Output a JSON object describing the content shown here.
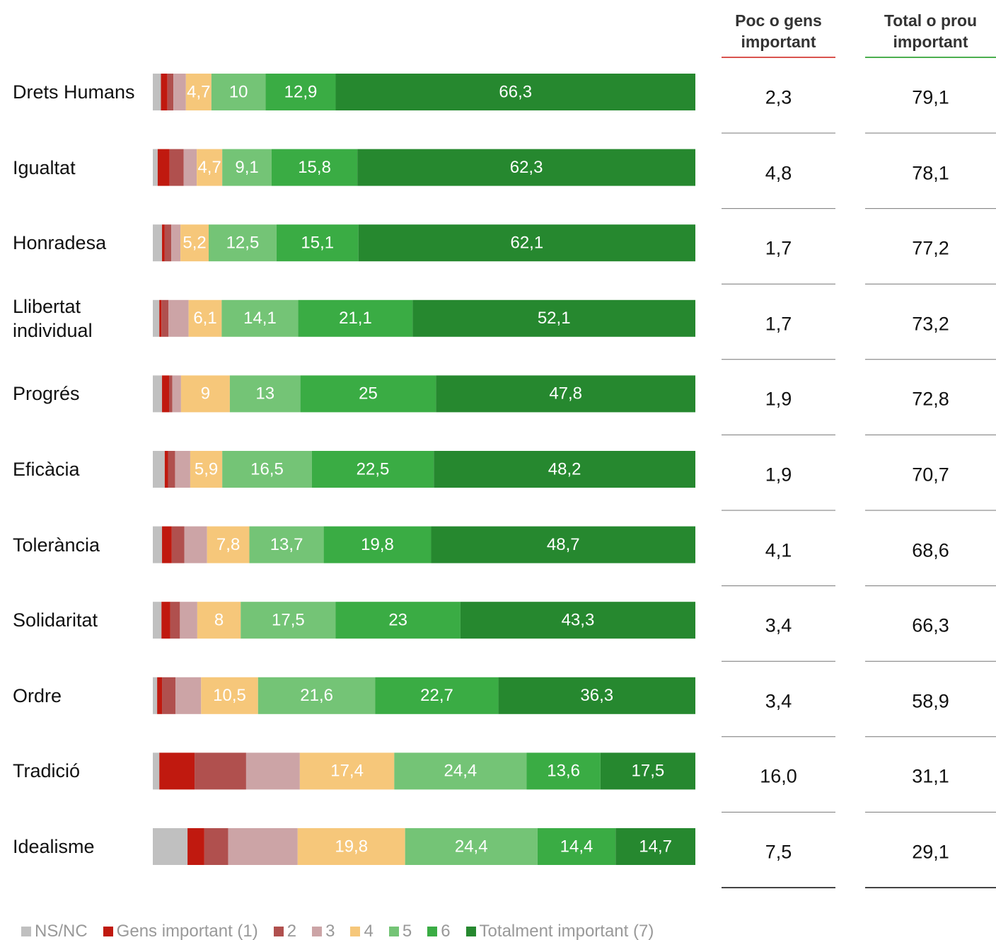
{
  "chart_data": {
    "type": "stacked-bar-horizontal",
    "categories": [
      "Drets Humans",
      "Igualtat",
      "Honradesa",
      "Llibertat individual",
      "Progrés",
      "Eficàcia",
      "Tolerància",
      "Solidaritat",
      "Ordre",
      "Tradició",
      "Idealisme"
    ],
    "xlim": [
      0,
      100
    ],
    "legend": "bottom",
    "series": [
      {
        "name": "NS/NC",
        "color": "#c0c0c0",
        "values": [
          1.5,
          0.9,
          1.7,
          1.2,
          1.7,
          2.2,
          1.7,
          1.6,
          0.8,
          1.2,
          6.4
        ]
      },
      {
        "name": "Gens important (1)",
        "color": "#c0190f",
        "values": [
          1.2,
          2.2,
          0.5,
          0.4,
          1.3,
          0.6,
          1.8,
          1.6,
          0.9,
          6.5,
          3.1
        ]
      },
      {
        "name": "2",
        "color": "#b0504e",
        "values": [
          1.1,
          2.6,
          1.2,
          1.3,
          0.6,
          1.3,
          2.3,
          1.8,
          2.5,
          9.5,
          4.4
        ]
      },
      {
        "name": "3",
        "color": "#cca4a6",
        "values": [
          2.3,
          2.4,
          1.7,
          3.7,
          1.6,
          2.8,
          4.2,
          3.2,
          4.7,
          9.9,
          12.8
        ]
      },
      {
        "name": "4",
        "color": "#f6c77a",
        "values": [
          4.7,
          4.7,
          5.2,
          6.1,
          9,
          5.9,
          7.8,
          8,
          10.5,
          17.4,
          19.8
        ],
        "value_labels": [
          "4,7",
          "4,7",
          "5,2",
          "6,1",
          "9",
          "5,9",
          "7,8",
          "8",
          "10,5",
          "17,4",
          "19,8"
        ]
      },
      {
        "name": "5",
        "color": "#74c476",
        "values": [
          10,
          9.1,
          12.5,
          14.1,
          13,
          16.5,
          13.7,
          17.5,
          21.6,
          24.4,
          24.4
        ],
        "value_labels": [
          "10",
          "9,1",
          "12,5",
          "14,1",
          "13",
          "16,5",
          "13,7",
          "17,5",
          "21,6",
          "24,4",
          "24,4"
        ]
      },
      {
        "name": "6",
        "color": "#3aac44",
        "values": [
          12.9,
          15.8,
          15.1,
          21.1,
          25,
          22.5,
          19.8,
          23,
          22.7,
          13.6,
          14.4
        ],
        "value_labels": [
          "12,9",
          "15,8",
          "15,1",
          "21,1",
          "25",
          "22,5",
          "19,8",
          "23",
          "22,7",
          "13,6",
          "14,4"
        ]
      },
      {
        "name": "Totalment important (7)",
        "color": "#26882f",
        "values": [
          66.3,
          62.3,
          62.1,
          52.1,
          47.8,
          48.2,
          48.7,
          43.3,
          36.3,
          17.5,
          14.7
        ],
        "value_labels": [
          "66,3",
          "62,3",
          "62,1",
          "52,1",
          "47,8",
          "48,2",
          "48,7",
          "43,3",
          "36,3",
          "17,5",
          "14,7"
        ]
      }
    ],
    "table": [
      {
        "header": "Poc o gens important",
        "color": "#d9534f",
        "values": [
          "2,3",
          "4,8",
          "1,7",
          "1,7",
          "1,9",
          "1,9",
          "4,1",
          "3,4",
          "3,4",
          "16,0",
          "7,5"
        ]
      },
      {
        "header": "Total o prou important",
        "color": "#4caf50",
        "values": [
          "79,1",
          "78,1",
          "77,2",
          "73,2",
          "72,8",
          "70,7",
          "68,6",
          "66,3",
          "58,9",
          "31,1",
          "29,1"
        ]
      }
    ]
  }
}
